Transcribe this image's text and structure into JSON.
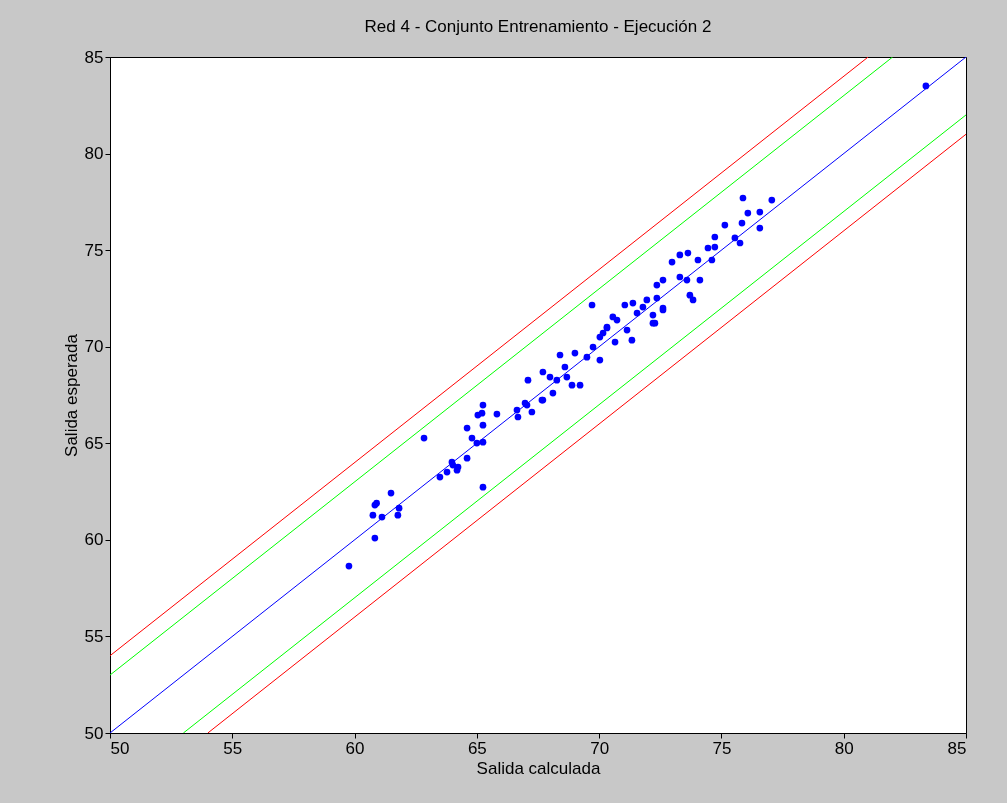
{
  "chart_data": {
    "type": "scatter",
    "title": "Red 4 - Conjunto Entrenamiento - Ejecución 2",
    "xlabel": "Salida calculada",
    "ylabel": "Salida esperada",
    "xlim": [
      50,
      85
    ],
    "ylim": [
      50,
      85
    ],
    "xticks": [
      50,
      55,
      60,
      65,
      70,
      75,
      80,
      85
    ],
    "yticks": [
      50,
      55,
      60,
      65,
      70,
      75,
      80,
      85
    ],
    "grid": false,
    "series": [
      {
        "type": "line",
        "color": "#0000ff",
        "x": [
          50,
          85
        ],
        "values": [
          50,
          85
        ]
      },
      {
        "type": "line",
        "color": "#00ff00",
        "x": [
          50,
          82
        ],
        "values": [
          53,
          85
        ]
      },
      {
        "type": "line",
        "color": "#00ff00",
        "x": [
          53,
          85
        ],
        "values": [
          50,
          82
        ]
      },
      {
        "type": "line",
        "color": "#ff0000",
        "x": [
          50,
          81
        ],
        "values": [
          54,
          85
        ]
      },
      {
        "type": "line",
        "color": "#ff0000",
        "x": [
          54,
          85
        ],
        "values": [
          50,
          81
        ]
      },
      {
        "marker": "circle",
        "color": "#0000ff",
        "x": [
          59.77,
          60.83,
          60.9,
          60.75,
          61.12,
          61.49,
          61.82,
          61.77,
          60.83,
          62.84,
          63.49,
          63.78,
          64.02,
          64.23,
          63.98,
          64.6,
          64.19,
          64.6,
          64.8,
          65.0,
          65.25,
          65.25,
          65.25,
          65.21,
          65.04,
          65.25,
          65.82,
          66.64,
          67.05,
          67.25,
          66.68,
          67.66,
          66.97,
          67.09,
          67.7,
          67.7,
          68.11,
          68.4,
          68.6,
          69.01,
          68.89,
          69.22,
          68.27,
          67.99,
          68.68,
          69.5,
          70.03,
          69.75,
          70.16,
          70.32,
          70.73,
          70.65,
          71.34,
          71.14,
          71.05,
          71.55,
          71.79,
          72.2,
          72.2,
          72.61,
          71.95,
          69.71,
          73.84,
          71.38,
          72.36,
          72.61,
          72.28,
          72.61,
          72.36,
          72.98,
          73.3,
          73.63,
          73.3,
          73.59,
          73.71,
          74.12,
          74.04,
          74.45,
          74.61,
          74.73,
          74.73,
          75.14,
          75.55,
          75.76,
          75.84,
          76.08,
          76.57,
          76.57,
          75.88,
          77.06,
          70.32,
          70.56,
          70.03,
          83.36
        ],
        "values": [
          58.64,
          61.8,
          61.9,
          61.28,
          61.18,
          62.42,
          61.64,
          61.28,
          60.09,
          65.27,
          63.25,
          63.51,
          63.87,
          63.77,
          64.03,
          64.23,
          63.61,
          65.79,
          65.27,
          65.01,
          65.06,
          65.94,
          66.98,
          66.56,
          66.46,
          62.73,
          66.51,
          66.72,
          66.98,
          66.62,
          66.36,
          67.24,
          67.08,
          68.27,
          68.69,
          67.24,
          67.6,
          69.57,
          68.95,
          69.67,
          68.01,
          68.01,
          68.27,
          68.43,
          68.43,
          69.46,
          69.31,
          69.98,
          70.71,
          70.97,
          71.38,
          70.24,
          70.34,
          70.86,
          72.16,
          71.74,
          72.05,
          71.22,
          71.64,
          71.9,
          72.42,
          72.16,
          72.42,
          72.26,
          72.52,
          72.0,
          71.22,
          73.45,
          73.19,
          74.38,
          74.75,
          74.85,
          73.61,
          73.45,
          72.67,
          73.45,
          74.49,
          75.11,
          74.49,
          75.68,
          75.16,
          76.3,
          75.63,
          75.37,
          76.4,
          76.92,
          76.97,
          76.14,
          77.7,
          77.59,
          71.02,
          71.54,
          70.5,
          83.5
        ]
      }
    ]
  }
}
